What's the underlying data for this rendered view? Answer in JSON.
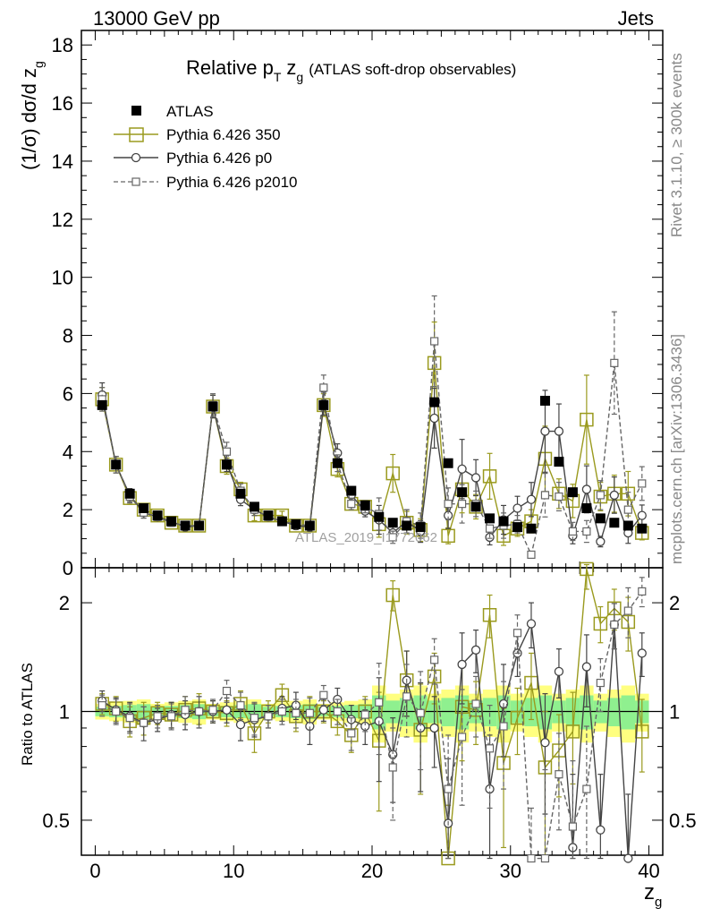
{
  "header": {
    "left": "13000 GeV pp",
    "right": "Jets"
  },
  "title": {
    "main": "Relative p",
    "sub": "T",
    "zg": "z",
    "zgsub": "g",
    "paren": "(ATLAS soft-drop observables)"
  },
  "side_text": {
    "rivet": "Rivet 3.1.10, ≥ 300k events",
    "mcplots": "mcplots.cern.ch [arXiv:1306.3436]"
  },
  "watermark": "ATLAS_2019_I1772062",
  "axis_labels": {
    "y_top": "(1/σ) dσ/d z",
    "y_top_sub": "g",
    "y_bottom": "Ratio to ATLAS",
    "x": "z",
    "x_sub": "g"
  },
  "legend": [
    {
      "label": "ATLAS",
      "marker": "filled-square",
      "color": "#000000"
    },
    {
      "label": "Pythia 6.426 350",
      "marker": "open-square",
      "color": "#9a9a1e"
    },
    {
      "label": "Pythia 6.426 p0",
      "marker": "open-circle",
      "color": "#444444"
    },
    {
      "label": "Pythia 6.426 p2010",
      "marker": "open-square-dashed",
      "color": "#666666"
    }
  ],
  "colors": {
    "data": "#000000",
    "p350": "#9a9a1e",
    "p0": "#444444",
    "p2010": "#666666",
    "band_inner": "#8ff08f",
    "band_outer": "#ffff80"
  },
  "chart_data": {
    "type": "scatter",
    "x": [
      0.5,
      1.5,
      2.5,
      3.5,
      4.5,
      5.5,
      6.5,
      7.5,
      8.5,
      9.5,
      10.5,
      11.5,
      12.5,
      13.5,
      14.5,
      15.5,
      16.5,
      17.5,
      18.5,
      19.5,
      20.5,
      21.5,
      22.5,
      23.5,
      24.5,
      25.5,
      26.5,
      27.5,
      28.5,
      29.5,
      30.5,
      31.5,
      32.5,
      33.5,
      34.5,
      35.5,
      36.5,
      37.5,
      38.5,
      39.5
    ],
    "xlim": [
      -1,
      41
    ],
    "x_ticks": [
      0,
      10,
      20,
      30,
      40
    ],
    "top_panel": {
      "ylim": [
        0,
        18.5
      ],
      "y_ticks": [
        0,
        2,
        4,
        6,
        8,
        10,
        12,
        14,
        16,
        18
      ],
      "series": [
        {
          "name": "ATLAS",
          "values": [
            5.6,
            3.55,
            2.55,
            2.05,
            1.8,
            1.6,
            1.45,
            1.45,
            5.55,
            3.55,
            2.55,
            2.1,
            1.8,
            1.6,
            1.5,
            1.45,
            5.6,
            3.6,
            2.65,
            2.15,
            1.75,
            1.55,
            1.45,
            1.4,
            5.7,
            3.6,
            2.6,
            2.1,
            1.7,
            1.6,
            1.4,
            1.35,
            5.75,
            3.65,
            2.6,
            2.05,
            1.7,
            1.55,
            1.45,
            1.35
          ]
        },
        {
          "name": "Pythia 6.426 350",
          "values": [
            5.8,
            3.55,
            2.4,
            2.0,
            1.8,
            1.55,
            1.45,
            1.45,
            5.55,
            3.5,
            2.7,
            1.8,
            1.8,
            1.8,
            1.45,
            1.45,
            5.6,
            3.4,
            2.2,
            2.1,
            1.5,
            3.25,
            1.55,
            1.3,
            7.05,
            1.1,
            2.7,
            2.1,
            3.15,
            1.1,
            1.35,
            1.6,
            3.75,
            2.55,
            2.3,
            5.1,
            2.45,
            2.55,
            2.55,
            1.2
          ]
        },
        {
          "name": "Pythia 6.426 p0",
          "values": [
            5.95,
            3.55,
            2.5,
            1.9,
            1.75,
            1.6,
            1.4,
            1.45,
            5.55,
            3.6,
            2.35,
            2.0,
            1.75,
            1.6,
            1.45,
            1.4,
            5.65,
            3.95,
            2.5,
            1.95,
            1.65,
            1.2,
            1.6,
            1.25,
            5.15,
            1.8,
            3.4,
            3.1,
            1.05,
            1.65,
            2.05,
            2.35,
            4.7,
            4.7,
            1.1,
            2.7,
            0.9,
            2.5,
            1.2,
            1.8
          ]
        },
        {
          "name": "Pythia 6.426 p2010",
          "values": [
            5.8,
            3.55,
            2.45,
            1.9,
            1.75,
            1.55,
            1.45,
            1.45,
            5.6,
            4.0,
            2.65,
            2.0,
            1.75,
            1.6,
            1.5,
            1.45,
            6.2,
            3.6,
            2.2,
            2.1,
            1.85,
            1.05,
            1.6,
            1.45,
            7.8,
            2.2,
            2.2,
            2.2,
            1.35,
            1.45,
            1.5,
            0.45,
            2.5,
            2.45,
            1.25,
            1.25,
            2.5,
            7.05,
            2.0,
            2.9
          ]
        }
      ]
    },
    "ratio_panel": {
      "ylim": [
        0.4,
        2.5
      ],
      "y_scale": "log",
      "y_ticks": [
        0.5,
        1,
        2
      ],
      "series": [
        {
          "name": "Pythia 6.426 350",
          "values": [
            1.05,
            1.02,
            0.94,
            0.96,
            0.99,
            0.98,
            1.01,
            1.02,
            1.0,
            0.99,
            1.05,
            0.87,
            1.0,
            1.11,
            0.97,
            1.0,
            1.0,
            0.94,
            0.86,
            1.0,
            0.83,
            2.1,
            1.22,
            0.89,
            1.25,
            0.3,
            1.03,
            1.01,
            1.85,
            0.72,
            0.96,
            1.2,
            0.7,
            0.78,
            0.88,
            2.48,
            1.75,
            1.93,
            1.77,
            0.88
          ]
        },
        {
          "name": "Pythia 6.426 p0",
          "values": [
            1.07,
            1.01,
            0.97,
            0.93,
            0.95,
            0.98,
            0.98,
            1.0,
            1.0,
            1.01,
            0.92,
            0.95,
            0.97,
            1.02,
            1.04,
            0.91,
            1.01,
            1.08,
            0.95,
            0.91,
            0.94,
            0.76,
            1.22,
            0.9,
            0.9,
            0.49,
            1.35,
            1.48,
            0.61,
            1.05,
            1.45,
            1.75,
            0.82,
            1.29,
            0.42,
            1.33,
            0.47,
            1.74,
            0.29,
            1.45
          ]
        },
        {
          "name": "Pythia 6.426 p2010",
          "values": [
            1.04,
            1.0,
            0.96,
            0.93,
            0.97,
            0.97,
            1.01,
            1.0,
            1.01,
            1.14,
            1.04,
            0.96,
            0.97,
            1.0,
            0.99,
            0.99,
            1.11,
            1.0,
            0.87,
            0.98,
            1.06,
            0.7,
            1.1,
            0.99,
            1.39,
            0.61,
            0.85,
            1.05,
            0.79,
            0.91,
            1.65,
            0.29,
            0.39,
            0.67,
            0.48,
            0.61,
            1.2,
            1.74,
            1.9,
            2.15
          ]
        }
      ]
    }
  }
}
